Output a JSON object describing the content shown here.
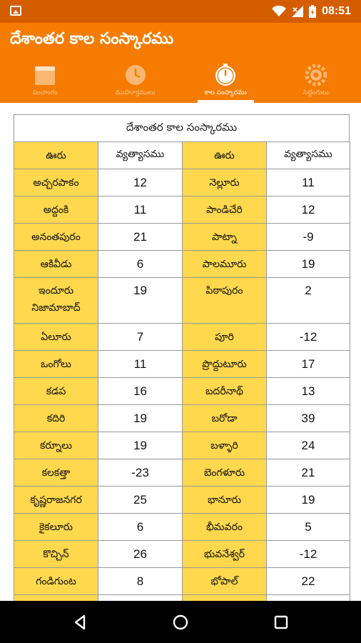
{
  "status_bar": {
    "time": "08:51",
    "icons": [
      "image-icon",
      "wifi-icon",
      "signal-icon",
      "battery-icon"
    ]
  },
  "app": {
    "title": "దేశాంతర కాల సంస్కారము",
    "colors": {
      "status_bar": "#d45d00",
      "app_bar": "#f57c00",
      "place_cell": "#ffd84d"
    }
  },
  "tabs": [
    {
      "label": "పంచాంగం",
      "icon": "calendar-icon",
      "active": false
    },
    {
      "label": "ముహూర్తములు",
      "icon": "clock-icon",
      "active": false
    },
    {
      "label": "కాల సంస్కారము",
      "icon": "stopwatch-icon",
      "active": true
    },
    {
      "label": "సెట్టింగులు",
      "icon": "settings-icon",
      "active": false
    }
  ],
  "table": {
    "caption": "దేశాంతర కాల సంస్కారము",
    "headers": [
      "ఊరు",
      "వ్యత్యాసము",
      "ఊరు",
      "వ్యత్యాసము"
    ],
    "rows": [
      {
        "place1": "అచ్చరపాకం",
        "diff1": "12",
        "place2": "నెల్లూరు",
        "diff2": "11"
      },
      {
        "place1": "అద్దంకి",
        "diff1": "11",
        "place2": "పాండిచేరి",
        "diff2": "12"
      },
      {
        "place1": "అనంతపురం",
        "diff1": "21",
        "place2": "పాట్నా",
        "diff2": "-9"
      },
      {
        "place1": "ఆకివీడు",
        "diff1": "6",
        "place2": "పాలమూరు",
        "diff2": "19"
      },
      {
        "place1": "ఇందూరు",
        "place1_line2": "నిజామాబాద్",
        "diff1": "19",
        "place2": "పిఠాపురం",
        "diff2": "2"
      },
      {
        "place1": "ఏలూరు",
        "diff1": "7",
        "place2": "పూరి",
        "diff2": "-12"
      },
      {
        "place1": "ఒంగోలు",
        "diff1": "11",
        "place2": "ప్రొద్దుటూరు",
        "diff2": "17"
      },
      {
        "place1": "కడప",
        "diff1": "16",
        "place2": "బదరీనాథ్",
        "diff2": "13"
      },
      {
        "place1": "కదిరి",
        "diff1": "19",
        "place2": "బరోడా",
        "diff2": "39"
      },
      {
        "place1": "కర్నూలు",
        "diff1": "19",
        "place2": "బళ్ళారి",
        "diff2": "24"
      },
      {
        "place1": "కలకత్తా",
        "diff1": "-23",
        "place2": "బెంగళూరు",
        "diff2": "21"
      },
      {
        "place1": "కృష్ణరాజనగర",
        "diff1": "25",
        "place2": "భానూరు",
        "diff2": "19"
      },
      {
        "place1": "కైకలూరు",
        "diff1": "6",
        "place2": "భీమవరం",
        "diff2": "5"
      },
      {
        "place1": "కొచ్చిన్",
        "diff1": "26",
        "place2": "భువనేశ్వర్",
        "diff2": "-12"
      },
      {
        "place1": "గండిగుంట",
        "diff1": "8",
        "place2": "భోపాల్",
        "diff2": "22"
      }
    ]
  },
  "nav": {
    "buttons": [
      "back-icon",
      "home-icon",
      "recents-icon"
    ]
  }
}
